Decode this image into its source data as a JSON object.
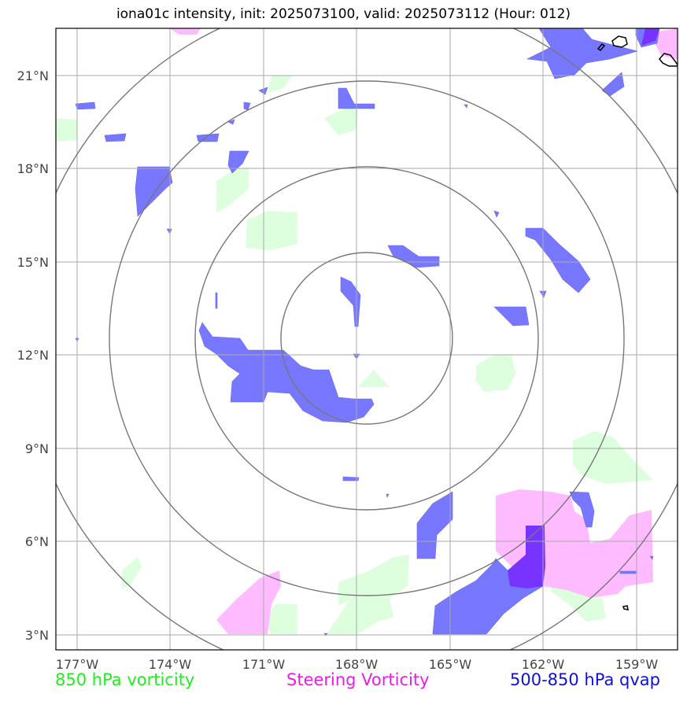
{
  "title": "iona01c intensity, init: 2025073100, valid: 2025073112 (Hour: 012)",
  "axes": {
    "lon_ticks": [
      "177°W",
      "174°W",
      "171°W",
      "168°W",
      "165°W",
      "162°W",
      "159°W"
    ],
    "lat_ticks": [
      "21°N",
      "18°N",
      "15°N",
      "12°N",
      "9°N",
      "6°N",
      "3°N"
    ],
    "lon_range": [
      -177.7,
      -157.7
    ],
    "lat_range": [
      2.5,
      22.5
    ]
  },
  "legend": [
    {
      "label": "850 hPa vorticity",
      "color": "#22ee22"
    },
    {
      "label": "Steering Vorticity",
      "color": "#e81ee8"
    },
    {
      "label": "500-850 hPa qvap",
      "color": "#1010dd"
    }
  ],
  "range_rings": {
    "center": [
      -168.0,
      12.5
    ],
    "count": 4
  },
  "colors": {
    "vorticity_fill": "#ddffdd",
    "steering_fill": "#ffbbff",
    "qvap_fill": "#7777ff",
    "overlap_fill": "#7733ff",
    "ring": "#777777",
    "grid": "#aaaaaa"
  }
}
